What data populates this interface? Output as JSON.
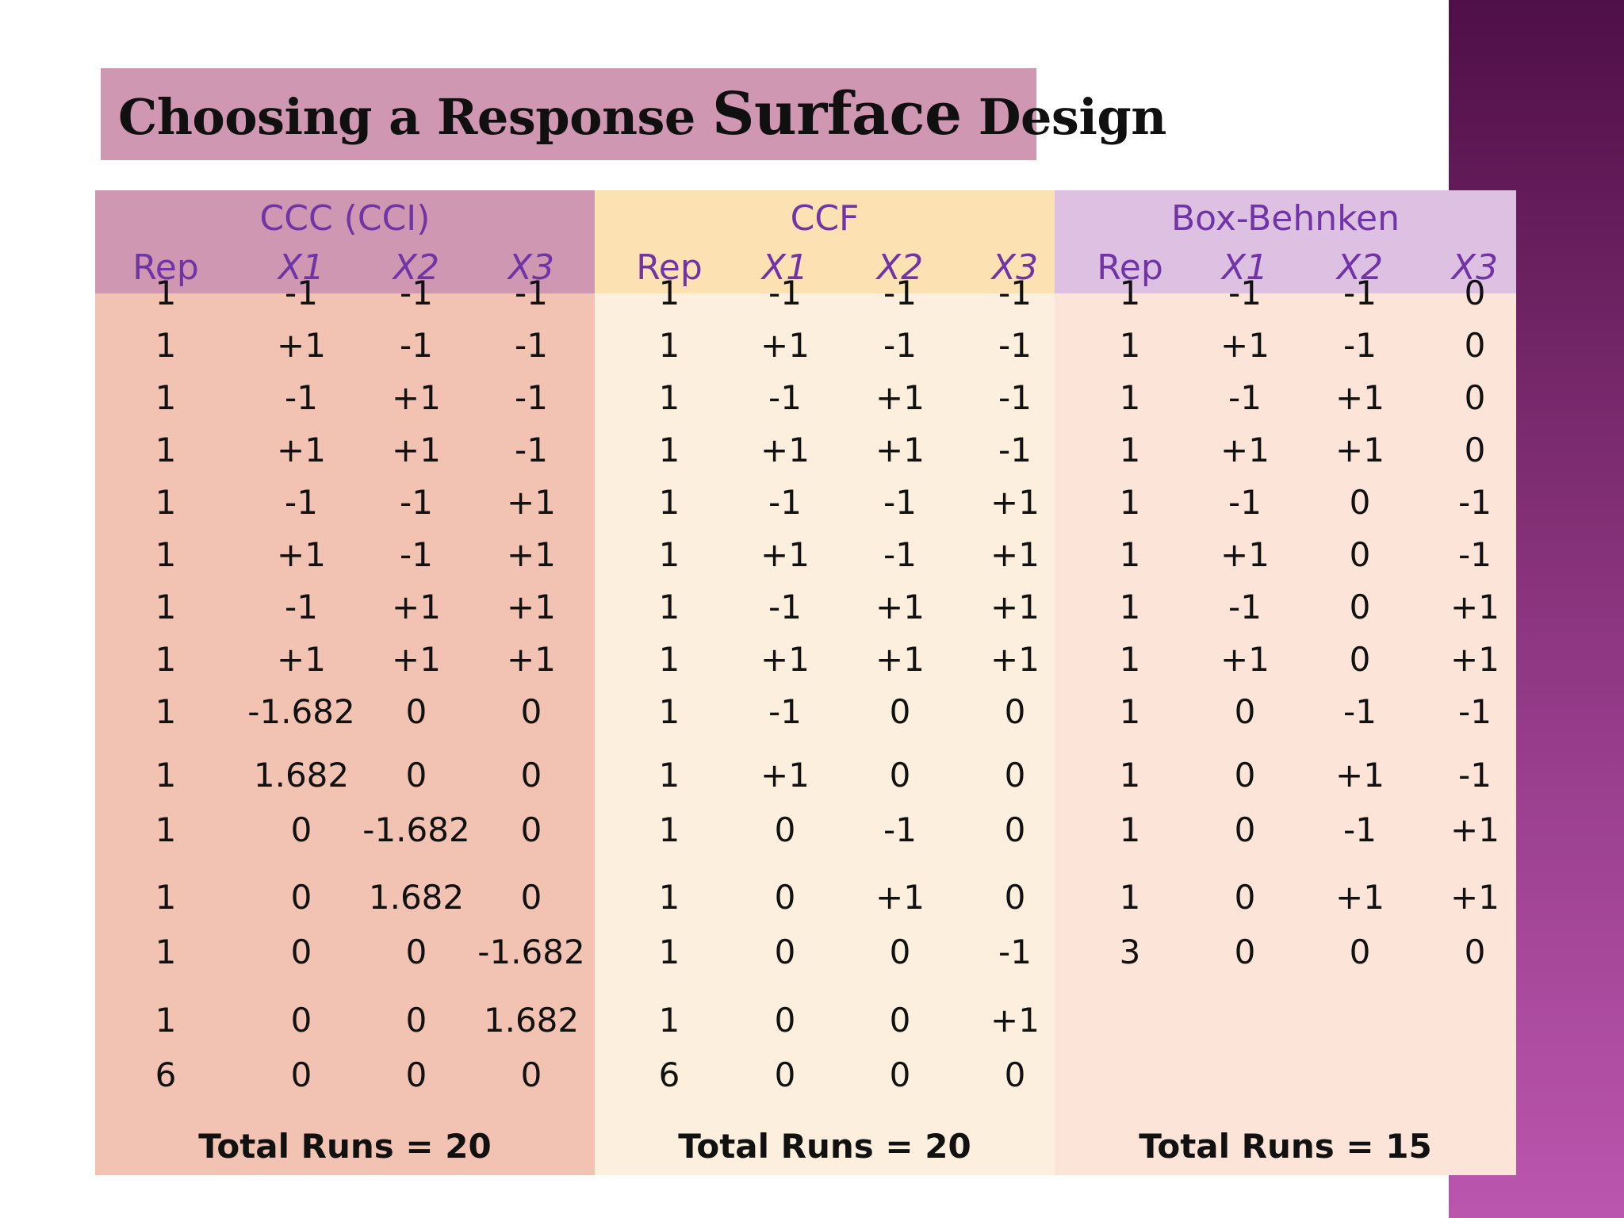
{
  "slide": {
    "title_part1": "Choosing a Response ",
    "title_part2": "Surface",
    "title_part3": " Design"
  },
  "groups": [
    {
      "id": "ccc",
      "title": "CCC (CCI)",
      "columns": [
        "Rep",
        "X1",
        "X2",
        "X3"
      ],
      "rows": [
        [
          "1",
          "-1",
          "-1",
          "-1"
        ],
        [
          "1",
          "+1",
          "-1",
          "-1"
        ],
        [
          "1",
          "-1",
          "+1",
          "-1"
        ],
        [
          "1",
          "+1",
          "+1",
          "-1"
        ],
        [
          "1",
          "-1",
          "-1",
          "+1"
        ],
        [
          "1",
          "+1",
          "-1",
          "+1"
        ],
        [
          "1",
          "-1",
          "+1",
          "+1"
        ],
        [
          "1",
          "+1",
          "+1",
          "+1"
        ],
        [
          "1",
          "-1.682",
          "0",
          "0"
        ],
        [
          "1",
          "1.682",
          "0",
          "0"
        ],
        [
          "1",
          "0",
          "-1.682",
          "0"
        ],
        [
          "1",
          "0",
          "1.682",
          "0"
        ],
        [
          "1",
          "0",
          "0",
          "-1.682"
        ],
        [
          "1",
          "0",
          "0",
          "1.682"
        ],
        [
          "6",
          "0",
          "0",
          "0"
        ]
      ],
      "total": "Total Runs = 20"
    },
    {
      "id": "ccf",
      "title": "CCF",
      "columns": [
        "Rep",
        "X1",
        "X2",
        "X3"
      ],
      "rows": [
        [
          "1",
          "-1",
          "-1",
          "-1"
        ],
        [
          "1",
          "+1",
          "-1",
          "-1"
        ],
        [
          "1",
          "-1",
          "+1",
          "-1"
        ],
        [
          "1",
          "+1",
          "+1",
          "-1"
        ],
        [
          "1",
          "-1",
          "-1",
          "+1"
        ],
        [
          "1",
          "+1",
          "-1",
          "+1"
        ],
        [
          "1",
          "-1",
          "+1",
          "+1"
        ],
        [
          "1",
          "+1",
          "+1",
          "+1"
        ],
        [
          "1",
          "-1",
          "0",
          "0"
        ],
        [
          "1",
          "+1",
          "0",
          "0"
        ],
        [
          "1",
          "0",
          "-1",
          "0"
        ],
        [
          "1",
          "0",
          "+1",
          "0"
        ],
        [
          "1",
          "0",
          "0",
          "-1"
        ],
        [
          "1",
          "0",
          "0",
          "+1"
        ],
        [
          "6",
          "0",
          "0",
          "0"
        ]
      ],
      "total": "Total Runs = 20"
    },
    {
      "id": "bb",
      "title": "Box-Behnken",
      "columns": [
        "Rep",
        "X1",
        "X2",
        "X3"
      ],
      "rows": [
        [
          "1",
          "-1",
          "-1",
          "0"
        ],
        [
          "1",
          "+1",
          "-1",
          "0"
        ],
        [
          "1",
          "-1",
          "+1",
          "0"
        ],
        [
          "1",
          "+1",
          "+1",
          "0"
        ],
        [
          "1",
          "-1",
          "0",
          "-1"
        ],
        [
          "1",
          "+1",
          "0",
          "-1"
        ],
        [
          "1",
          "-1",
          "0",
          "+1"
        ],
        [
          "1",
          "+1",
          "0",
          "+1"
        ],
        [
          "1",
          "0",
          "-1",
          "-1"
        ],
        [
          "1",
          "0",
          "+1",
          "-1"
        ],
        [
          "1",
          "0",
          "-1",
          "+1"
        ],
        [
          "1",
          "0",
          "+1",
          "+1"
        ],
        [
          "3",
          "0",
          "0",
          "0"
        ]
      ],
      "total": "Total Runs = 15"
    }
  ]
}
